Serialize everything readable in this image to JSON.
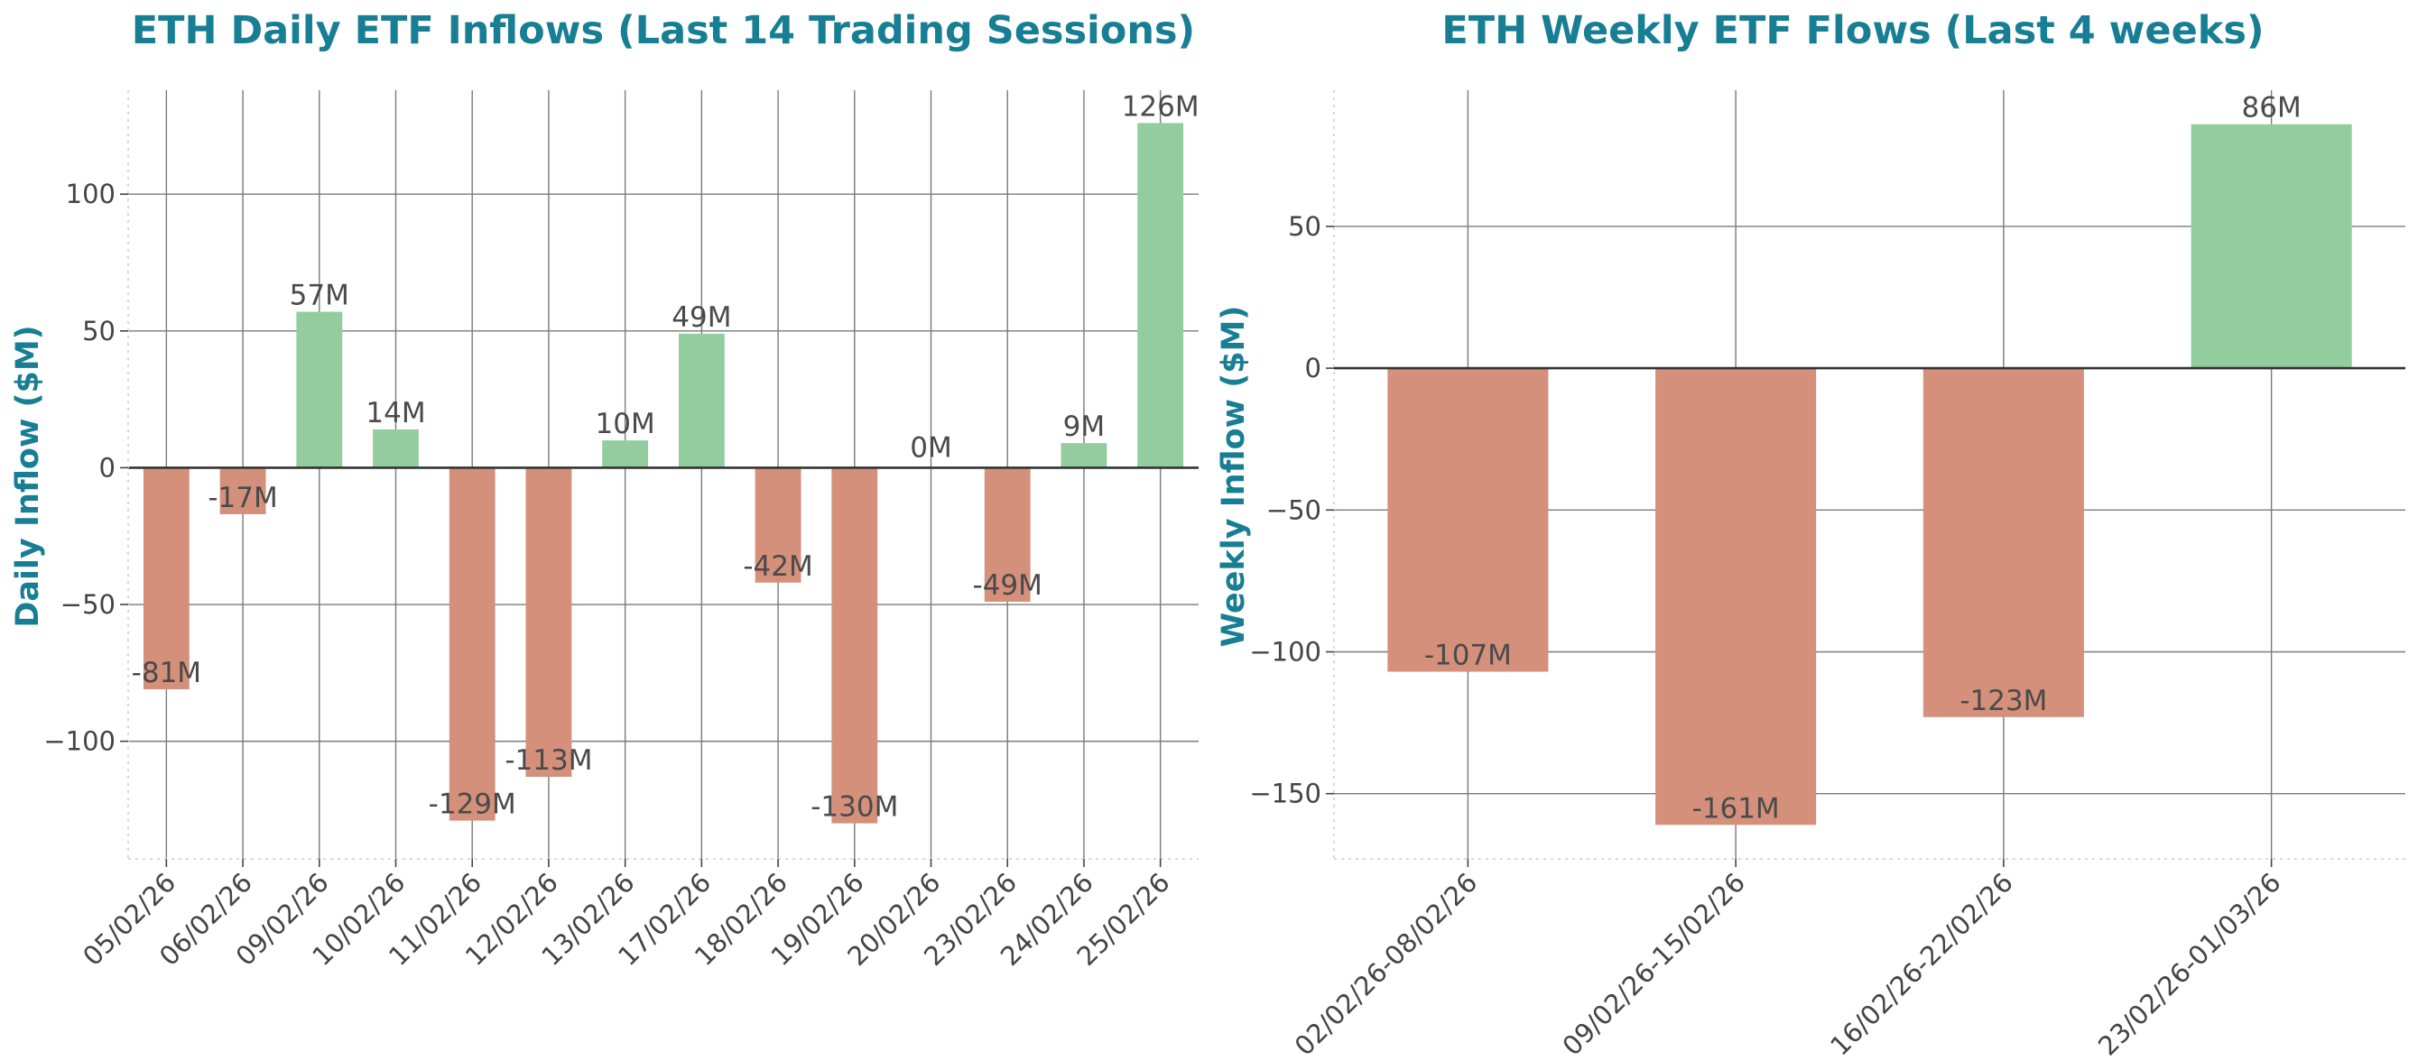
{
  "colors": {
    "title": "#177e93",
    "positive_bar": "#93cd9e",
    "negative_bar": "#d4907b",
    "label_text": "#4a4a4a"
  },
  "chart_data": [
    {
      "type": "bar",
      "title": "ETH Daily ETF Inflows (Last 14 Trading Sessions)",
      "xlabel": "",
      "ylabel": "Daily Inflow ($M)",
      "categories": [
        "05/02/26",
        "06/02/26",
        "09/02/26",
        "10/02/26",
        "11/02/26",
        "12/02/26",
        "13/02/26",
        "17/02/26",
        "18/02/26",
        "19/02/26",
        "20/02/26",
        "23/02/26",
        "24/02/26",
        "25/02/26"
      ],
      "values": [
        -81,
        -17,
        57,
        14,
        -129,
        -113,
        10,
        49,
        -42,
        -130,
        0,
        -49,
        9,
        126
      ],
      "data_labels": [
        "-81M",
        "-17M",
        "57M",
        "14M",
        "-129M",
        "-113M",
        "10M",
        "49M",
        "-42M",
        "-130M",
        "0M",
        "-49M",
        "9M",
        "126M"
      ],
      "yticks": [
        -100,
        -50,
        0,
        50,
        100
      ],
      "ytick_labels": [
        "−100",
        "−50",
        "0",
        "50",
        "100"
      ],
      "ylim": [
        -143,
        138
      ],
      "grid": true,
      "legend": "none"
    },
    {
      "type": "bar",
      "title": "ETH Weekly ETF Flows (Last 4 weeks)",
      "xlabel": "",
      "ylabel": "Weekly Inflow ($M)",
      "categories": [
        "02/02/26-08/02/26",
        "09/02/26-15/02/26",
        "16/02/26-22/02/26",
        "23/02/26-01/03/26"
      ],
      "values": [
        -107,
        -161,
        -123,
        86
      ],
      "data_labels": [
        "-107M",
        "-161M",
        "-123M",
        "86M"
      ],
      "yticks": [
        -150,
        -100,
        -50,
        0,
        50
      ],
      "ytick_labels": [
        "−150",
        "−100",
        "−50",
        "0",
        "50"
      ],
      "ylim": [
        -173,
        98
      ],
      "grid": true,
      "legend": "none"
    }
  ]
}
